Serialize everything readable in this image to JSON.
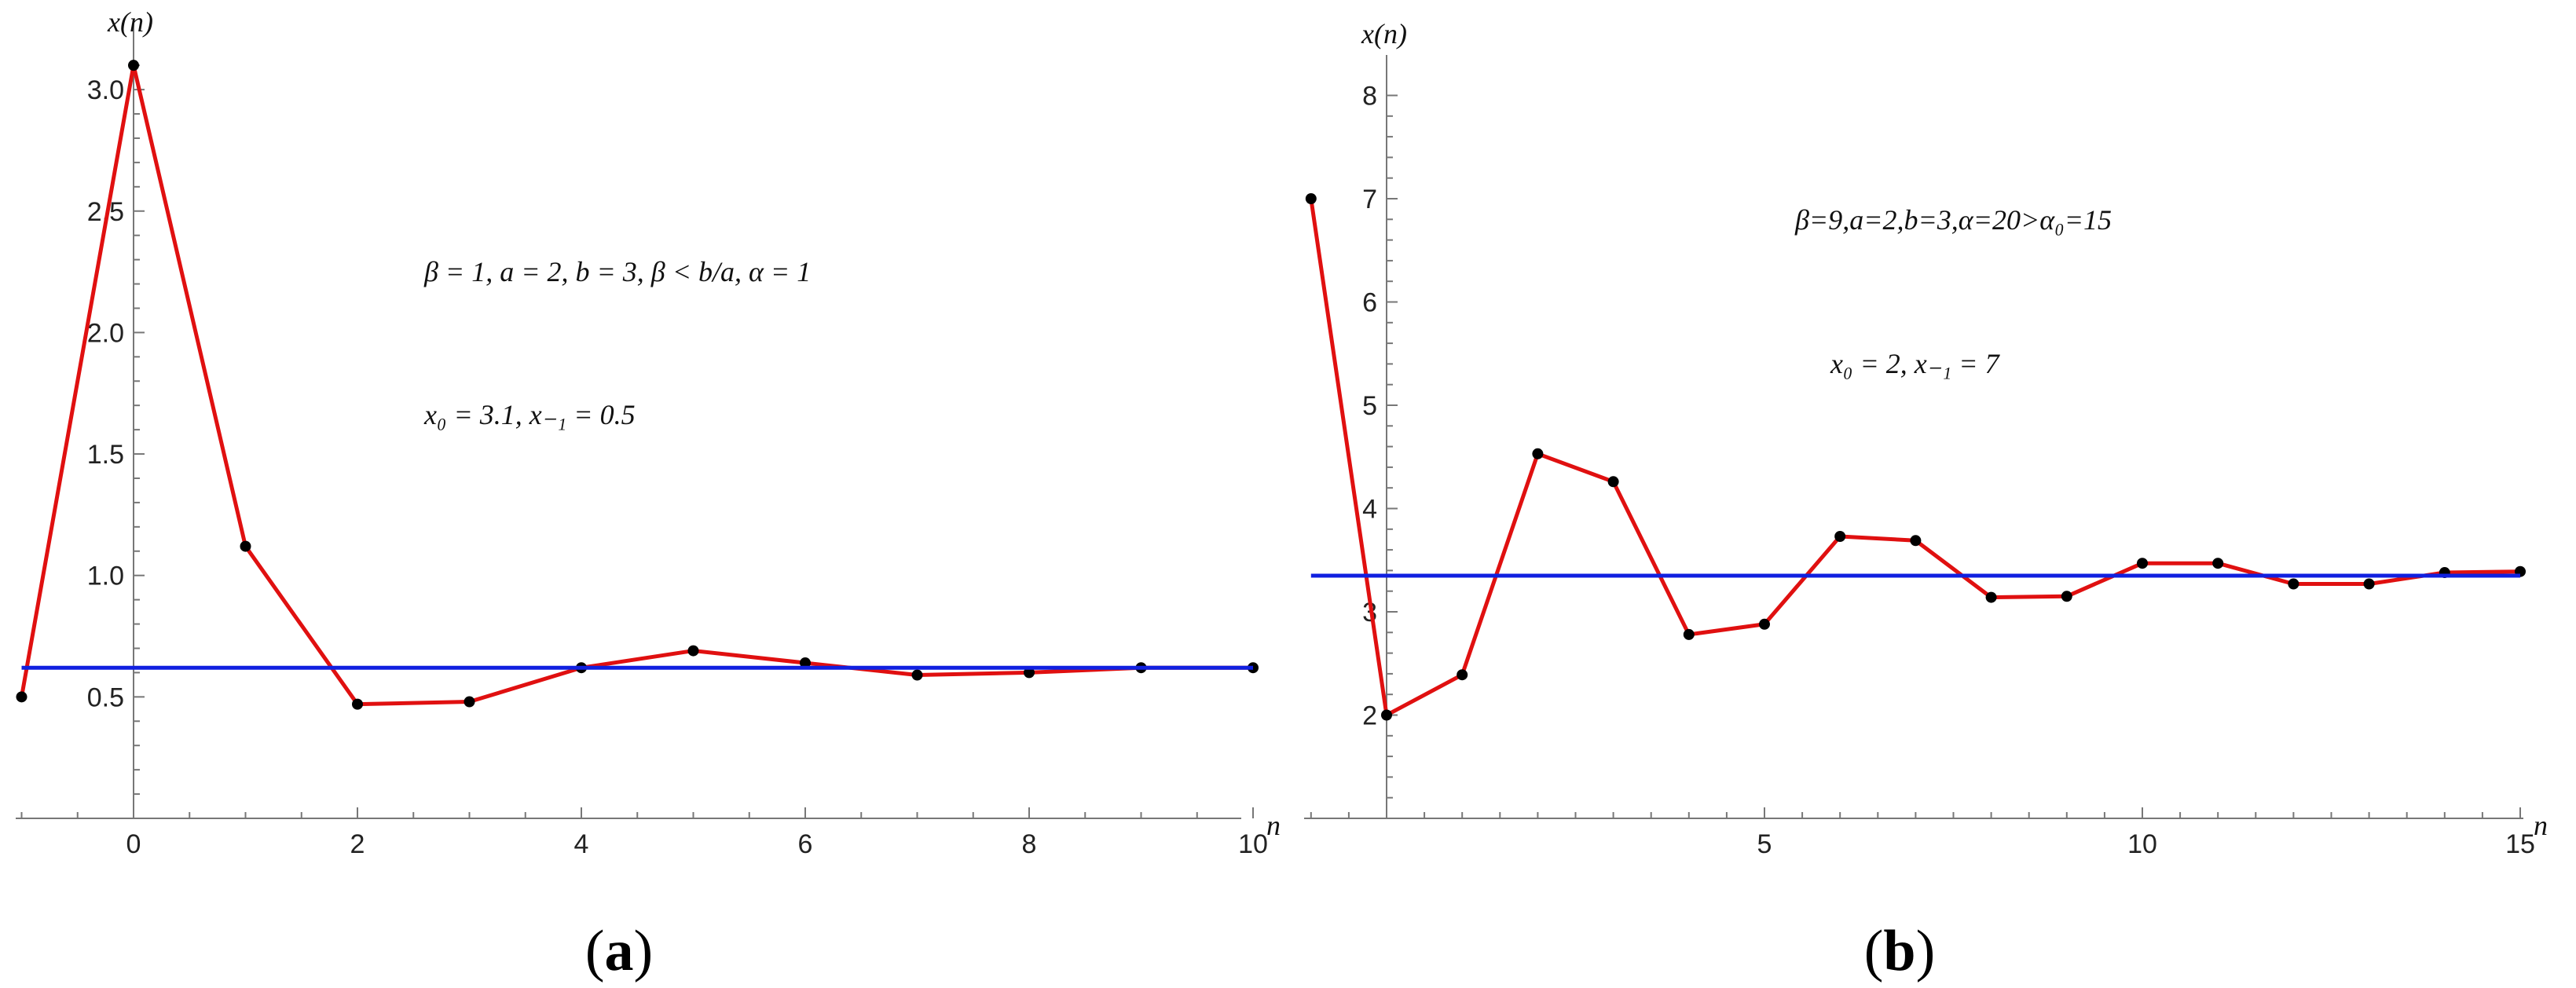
{
  "chart_data": [
    {
      "type": "line",
      "panel_label_open": "(",
      "panel_label_letter": "a",
      "panel_label_close": ")",
      "ylabel": "x(n)",
      "xlabel": "n",
      "xlim": [
        -1,
        10
      ],
      "ylim": [
        0.0,
        3.1
      ],
      "x_ticks": [
        0,
        2,
        4,
        6,
        8,
        10
      ],
      "y_ticks": [
        0.5,
        1.0,
        1.5,
        2.0,
        2.5,
        3.0
      ],
      "y_tick_labels": [
        "0.5",
        "1.0",
        "1.5",
        "2.0",
        "2.5",
        "3.0"
      ],
      "annotations": {
        "params": "β = 1, a = 2, b = 3, β < b/a, α = 1",
        "initial": "x₀ = 3.1, x₋₁ = 0.5"
      },
      "series": [
        {
          "color": "#e01010",
          "x": [
            -1,
            0,
            1,
            2,
            3,
            4,
            5,
            6,
            7,
            8,
            9,
            10
          ],
          "y": [
            0.5,
            3.1,
            1.12,
            0.47,
            0.48,
            0.62,
            0.69,
            0.64,
            0.59,
            0.6,
            0.62,
            0.62
          ]
        },
        {
          "color": "#1020e0",
          "x": [
            -1,
            10
          ],
          "y": [
            0.62,
            0.62
          ]
        }
      ]
    },
    {
      "type": "line",
      "panel_label_open": "(",
      "panel_label_letter": "b",
      "panel_label_close": ")",
      "ylabel": "x(n)",
      "xlabel": "n",
      "xlim": [
        -1,
        15
      ],
      "ylim": [
        1.0,
        8.0
      ],
      "x_ticks": [
        5,
        10,
        15
      ],
      "y_ticks": [
        2,
        3,
        4,
        5,
        6,
        7,
        8
      ],
      "y_tick_labels": [
        "2",
        "3",
        "4",
        "5",
        "6",
        "7",
        "8"
      ],
      "annotations": {
        "params": "β=9,a=2,b=3,α=20>α₀=15",
        "initial": "x₀ = 2, x₋₁ = 7"
      },
      "series": [
        {
          "color": "#e01010",
          "x": [
            -1,
            0,
            1,
            2,
            3,
            4,
            5,
            6,
            7,
            8,
            9,
            10,
            11,
            12,
            13,
            14,
            15
          ],
          "y": [
            7,
            2,
            2.39,
            4.53,
            4.26,
            2.78,
            2.88,
            3.73,
            3.69,
            3.14,
            3.15,
            3.47,
            3.47,
            3.27,
            3.27,
            3.38,
            3.39
          ]
        },
        {
          "color": "#1020e0",
          "x": [
            -1,
            15
          ],
          "y": [
            3.35,
            3.35
          ]
        }
      ]
    }
  ]
}
